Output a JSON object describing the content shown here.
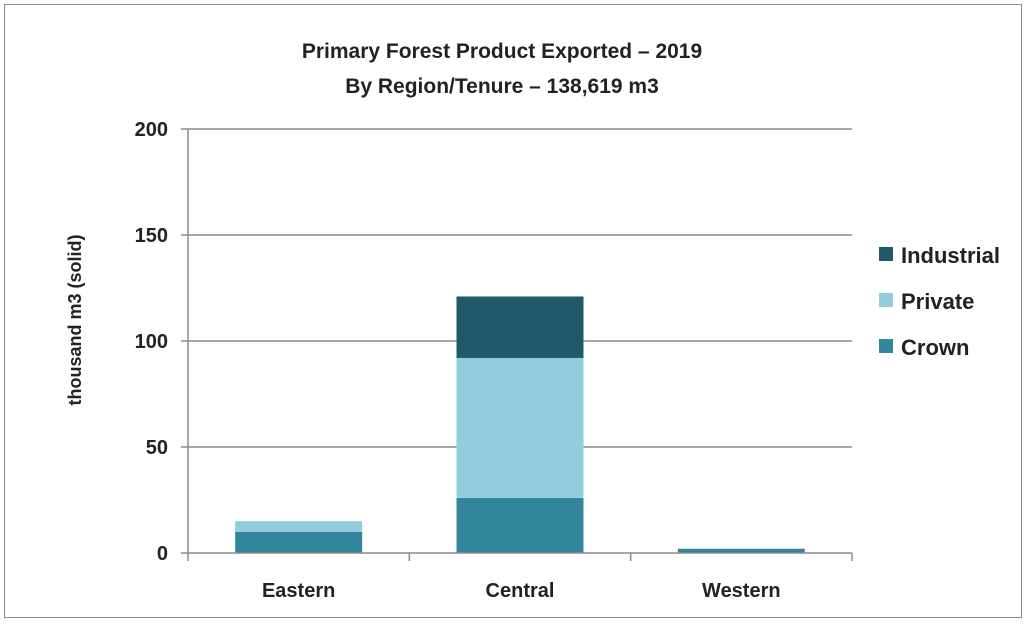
{
  "chart_data": {
    "type": "bar",
    "stacked": true,
    "title": "Primary Forest Product Exported – 2019",
    "subtitle": "By Region/Tenure – 138,619 m3",
    "xlabel": "",
    "ylabel": "thousand m3 (solid)",
    "ylim": [
      0,
      200
    ],
    "yticks": [
      0,
      50,
      100,
      150,
      200
    ],
    "grid": true,
    "legend_position": "right",
    "categories": [
      "Eastern",
      "Central",
      "Western"
    ],
    "series": [
      {
        "name": "Crown",
        "color": "#31859c",
        "values": [
          10,
          26,
          2
        ]
      },
      {
        "name": "Private",
        "color": "#93cddd",
        "values": [
          5,
          66,
          0
        ]
      },
      {
        "name": "Industrial",
        "color": "#215968",
        "values": [
          0,
          29,
          0
        ]
      }
    ],
    "legend_order": [
      "Industrial",
      "Private",
      "Crown"
    ]
  }
}
